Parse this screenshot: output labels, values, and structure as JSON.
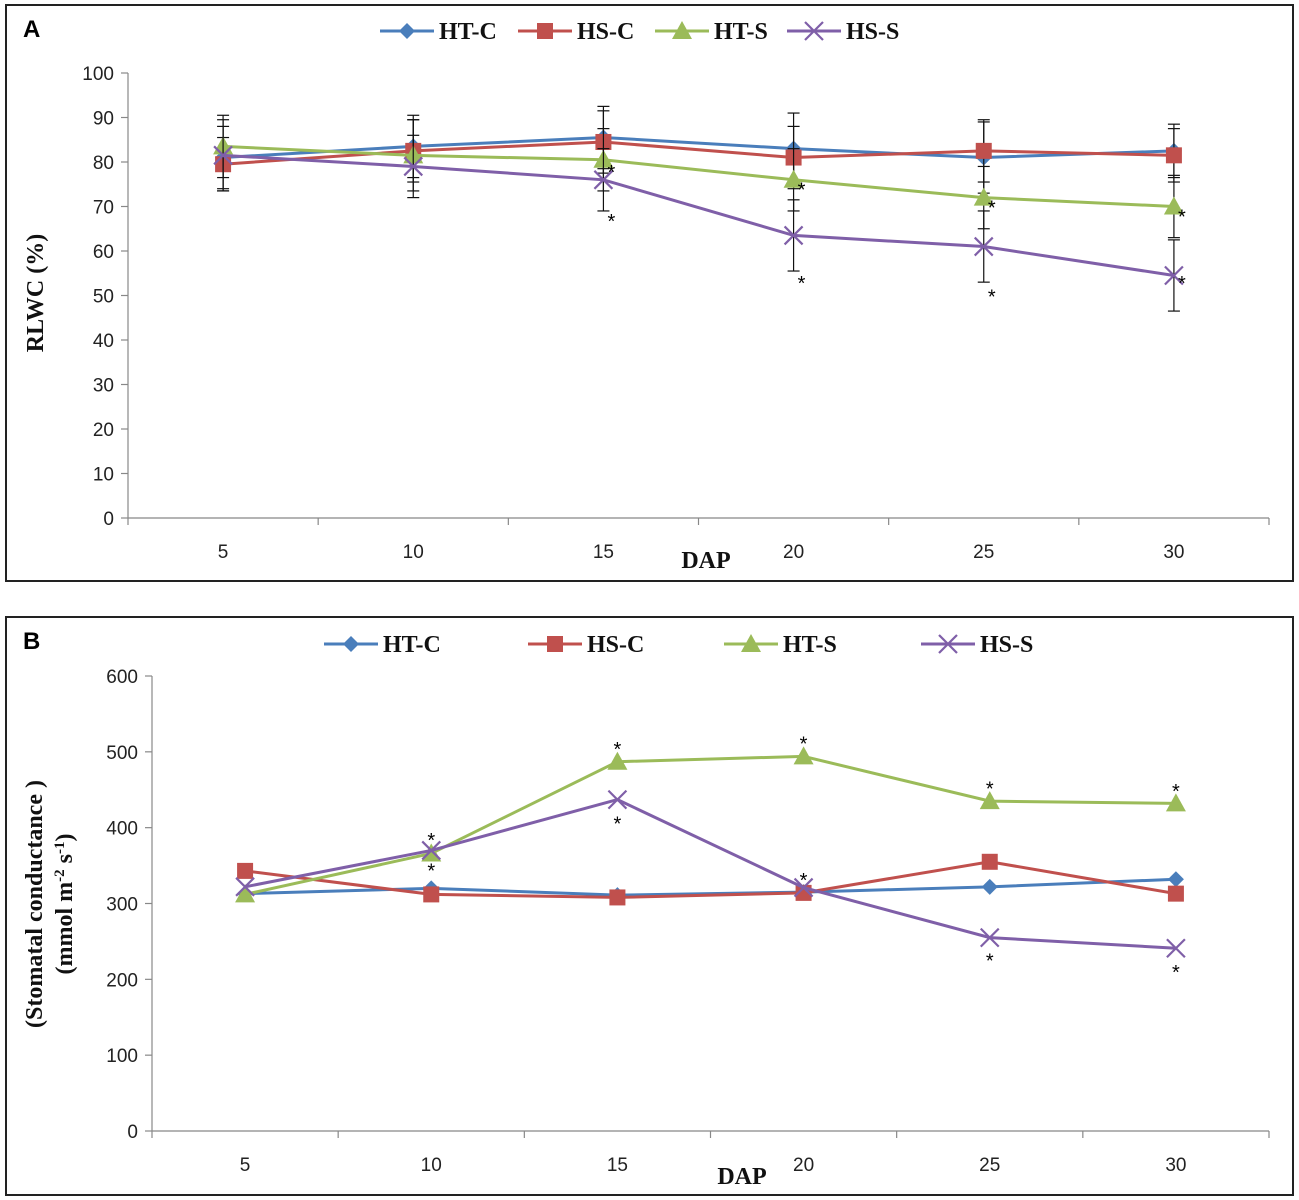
{
  "panels": [
    {
      "letter": "A",
      "legend": [
        "HT-C",
        "HS-C",
        "HT-S",
        "HS-S"
      ]
    },
    {
      "letter": "B",
      "legend": [
        "HT-C",
        "HS-C",
        "HT-S",
        "HS-S"
      ]
    }
  ],
  "colors": {
    "HT-C": "#4a7ebb",
    "HS-C": "#c0504d",
    "HT-S": "#9bbb59",
    "HS-S": "#7f5fa8"
  },
  "chart_data": [
    {
      "type": "line",
      "panel": "A",
      "x": [
        5,
        10,
        15,
        20,
        25,
        30
      ],
      "xlabel": "DAP",
      "ylabel": "RLWC (%)",
      "ylim": [
        0,
        100
      ],
      "yticks": [
        0,
        10,
        20,
        30,
        40,
        50,
        60,
        70,
        80,
        90,
        100
      ],
      "series": [
        {
          "name": "HT-C",
          "marker": "diamond",
          "values": [
            81,
            83.5,
            85.5,
            83,
            81,
            82.5
          ],
          "errors": [
            7,
            7,
            7,
            8,
            8,
            6
          ],
          "significant": [
            false,
            false,
            false,
            false,
            false,
            false
          ]
        },
        {
          "name": "HS-C",
          "marker": "square",
          "values": [
            79.5,
            82.5,
            84.5,
            81,
            82.5,
            81.5
          ],
          "errors": [
            6,
            7,
            7,
            7,
            7,
            6
          ],
          "significant": [
            false,
            false,
            false,
            false,
            false,
            false
          ]
        },
        {
          "name": "HT-S",
          "marker": "triangle",
          "values": [
            83.5,
            81.5,
            80.5,
            76,
            72,
            70
          ],
          "errors": [
            7,
            8,
            7,
            7,
            7,
            7
          ],
          "significant": [
            false,
            false,
            true,
            true,
            true,
            true
          ]
        },
        {
          "name": "HS-S",
          "marker": "x",
          "values": [
            81.5,
            79,
            76,
            63.5,
            61,
            54.5
          ],
          "errors": [
            8,
            7,
            7,
            8,
            8,
            8
          ],
          "significant": [
            false,
            false,
            true,
            true,
            true,
            true
          ]
        }
      ],
      "significance_marks": [
        {
          "x": 15,
          "y": 78,
          "label": "*"
        },
        {
          "x": 15,
          "y": 67,
          "label": "*"
        },
        {
          "x": 20,
          "y": 74,
          "label": "*"
        },
        {
          "x": 20,
          "y": 53,
          "label": "*"
        },
        {
          "x": 25,
          "y": 70,
          "label": "*"
        },
        {
          "x": 25,
          "y": 50,
          "label": "*"
        },
        {
          "x": 30,
          "y": 68,
          "label": "*"
        },
        {
          "x": 30,
          "y": 53,
          "label": "*"
        }
      ]
    },
    {
      "type": "line",
      "panel": "B",
      "x": [
        5,
        10,
        15,
        20,
        25,
        30
      ],
      "xlabel": "DAP",
      "ylabel_lines": [
        "(Stomatal conductance )",
        "(mmol m",
        "-2",
        " s",
        "-1",
        ")"
      ],
      "ylim": [
        0,
        600
      ],
      "yticks": [
        0,
        100,
        200,
        300,
        400,
        500,
        600
      ],
      "series": [
        {
          "name": "HT-C",
          "marker": "diamond",
          "values": [
            313,
            320,
            311,
            315,
            322,
            332
          ]
        },
        {
          "name": "HS-C",
          "marker": "square",
          "values": [
            343,
            312,
            308,
            314,
            355,
            313
          ]
        },
        {
          "name": "HT-S",
          "marker": "triangle",
          "values": [
            312,
            366,
            487,
            494,
            435,
            432
          ]
        },
        {
          "name": "HS-S",
          "marker": "x",
          "values": [
            322,
            370,
            437,
            321,
            255,
            241
          ]
        }
      ],
      "significance_marks": [
        {
          "x": 10,
          "y": 385,
          "label": "*"
        },
        {
          "x": 10,
          "y": 345,
          "label": "*"
        },
        {
          "x": 15,
          "y": 505,
          "label": "*"
        },
        {
          "x": 15,
          "y": 407,
          "label": "*"
        },
        {
          "x": 20,
          "y": 512,
          "label": "*"
        },
        {
          "x": 20,
          "y": 332,
          "label": "*"
        },
        {
          "x": 25,
          "y": 453,
          "label": "*"
        },
        {
          "x": 25,
          "y": 226,
          "label": "*"
        },
        {
          "x": 30,
          "y": 450,
          "label": "*"
        },
        {
          "x": 30,
          "y": 211,
          "label": "*"
        }
      ]
    }
  ]
}
